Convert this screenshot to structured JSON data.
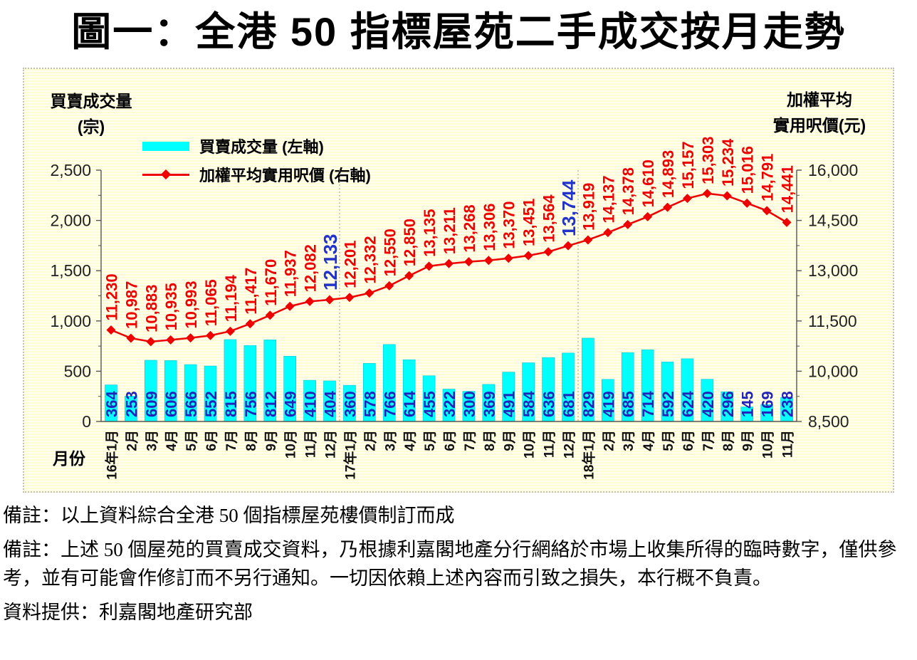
{
  "title": "圖一：全港 50 指標屋苑二手成交按月走勢",
  "x_axis_title": "月份",
  "footnotes": [
    "備註：以上資料綜合全港 50 個指標屋苑樓價制訂而成",
    "備註：上述 50 個屋苑的買賣成交資料，乃根據利嘉閣地產分行網絡於市場上收集所得的臨時數字，僅供參考，並有可能會作修訂而不另行通知。一切因依賴上述內容而引致之損失，本行概不負責。",
    "資料提供：利嘉閣地產研究部"
  ],
  "chart_data": {
    "type": "bar",
    "subtype": "combo-bar-line-dual-axis",
    "title": "圖一：全港 50 指標屋苑二手成交按月走勢",
    "xlabel": "月份",
    "legend_position": "top-left",
    "grid": "vertical dotted separators at year starts",
    "categories": [
      "16年1月",
      "2月",
      "3月",
      "4月",
      "5月",
      "6月",
      "7月",
      "8月",
      "9月",
      "10月",
      "11月",
      "12月",
      "17年1月",
      "2月",
      "3月",
      "4月",
      "5月",
      "6月",
      "7月",
      "8月",
      "9月",
      "10月",
      "11月",
      "12月",
      "18年1月",
      "2月",
      "3月",
      "4月",
      "5月",
      "6月",
      "7月",
      "8月",
      "9月",
      "10月",
      "11月"
    ],
    "series": [
      {
        "name": "買賣成交量 (左軸)",
        "type": "bar",
        "axis": "left",
        "values": [
          364,
          253,
          609,
          606,
          566,
          552,
          815,
          756,
          812,
          649,
          410,
          404,
          360,
          578,
          766,
          614,
          455,
          322,
          300,
          369,
          491,
          584,
          636,
          681,
          829,
          419,
          685,
          714,
          592,
          624,
          420,
          296,
          145,
          169,
          238
        ]
      },
      {
        "name": "加權平均實用呎價 (右軸)",
        "type": "line",
        "axis": "right",
        "values": [
          11230,
          10987,
          10883,
          10935,
          10993,
          11065,
          11194,
          11417,
          11670,
          11937,
          12082,
          12133,
          12201,
          12332,
          12550,
          12850,
          13135,
          13211,
          13268,
          13306,
          13370,
          13451,
          13564,
          13744,
          13919,
          14137,
          14378,
          14610,
          14893,
          15157,
          15303,
          15234,
          15016,
          14791,
          14441
        ]
      }
    ],
    "left_axis": {
      "title_line1": "買賣成交量",
      "title_line2": "(宗)",
      "min": 0,
      "max": 2500,
      "step": 500,
      "ticks": [
        0,
        500,
        1000,
        1500,
        2000,
        2500
      ]
    },
    "right_axis": {
      "title_line1": "加權平均",
      "title_line2": "實用呎價(元)",
      "min": 8500,
      "max": 16000,
      "step": 1500,
      "ticks": [
        8500,
        10000,
        11500,
        13000,
        14500,
        16000
      ]
    },
    "highlight_label_indices": [
      11,
      23
    ],
    "year_separator_indices": [
      12,
      24
    ],
    "colors": {
      "bar": "#00FFFF",
      "bar_border": "#00C8D8",
      "bar_label": "#2222BB",
      "line": "#EE0000",
      "line_label": "#EE0000",
      "highlight_label": "#2233CC",
      "axis": "#555555",
      "tick_text": "#222222",
      "separator": "#999999",
      "panel_bg": "#FFFCD4"
    }
  }
}
